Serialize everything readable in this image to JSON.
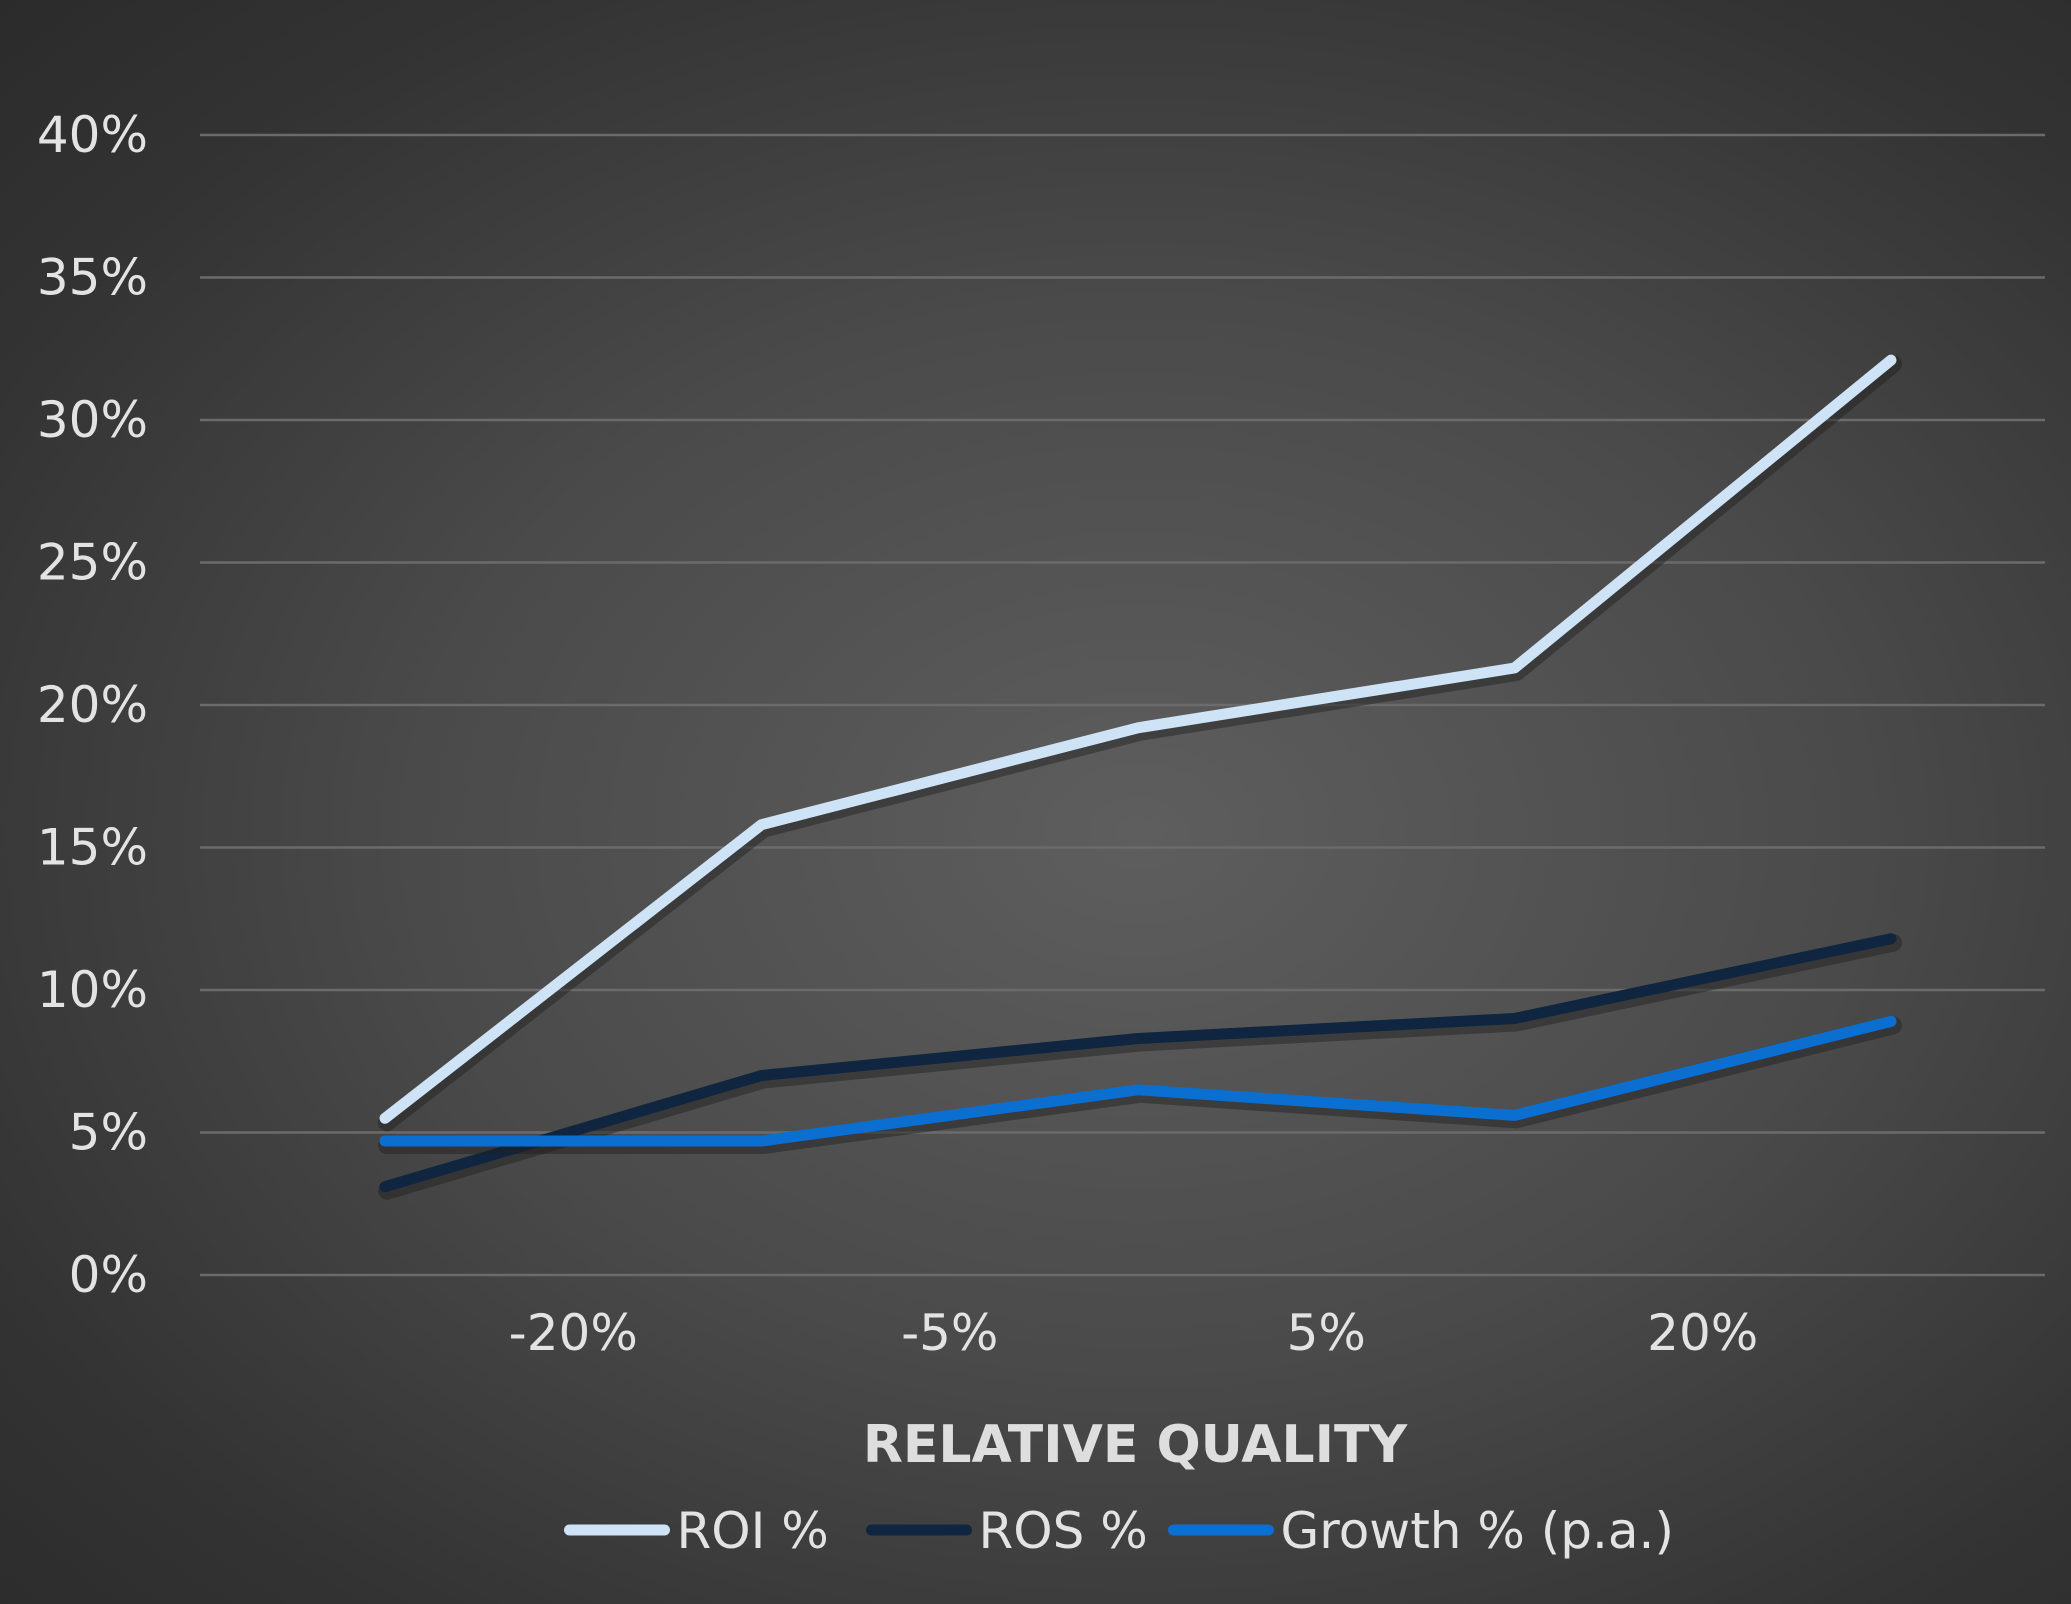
{
  "chart_data": {
    "type": "line",
    "title": "",
    "xlabel": "RELATIVE QUALITY",
    "ylabel": "",
    "x_tick_labels": [
      "-20%",
      "-5%",
      "5%",
      "20%"
    ],
    "y_tick_labels": [
      "0%",
      "5%",
      "10%",
      "15%",
      "20%",
      "25%",
      "30%",
      "35%",
      "40%"
    ],
    "ylim": [
      0,
      40
    ],
    "grid": true,
    "legend_position": "bottom",
    "point_count": 5,
    "series": [
      {
        "name": "ROI %",
        "color": "#cfe3f7",
        "values": [
          5.5,
          15.8,
          19.2,
          21.3,
          32.1
        ]
      },
      {
        "name": "ROS %",
        "color": "#0f2540",
        "values": [
          3.1,
          7.0,
          8.3,
          9.0,
          11.8
        ]
      },
      {
        "name": "Growth % (p.a.)",
        "color": "#0a6fd1",
        "values": [
          4.7,
          4.7,
          6.5,
          5.6,
          8.9
        ]
      }
    ]
  }
}
